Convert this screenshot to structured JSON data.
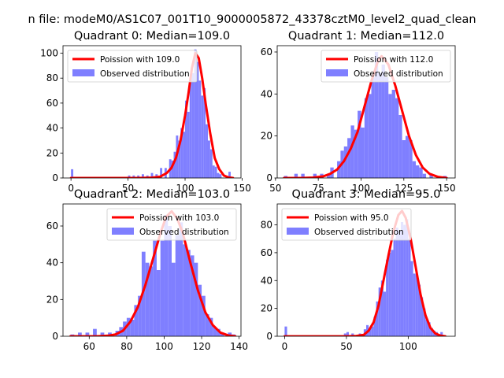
{
  "figure": {
    "suptitle": "n file: modeM0/AS1C07_001T10_9000005872_43378cztM0_level2_quad_clean"
  },
  "colors": {
    "fit_line": "#ff0000",
    "histogram": "#7f7fff",
    "axes": "#000000",
    "legend_border": "#cccccc"
  },
  "chart_data": [
    {
      "type": "bar",
      "title": "Quadrant 0: Median=109.0",
      "median": 109.0,
      "xlim": [
        -7,
        149
      ],
      "ylim": [
        0,
        106
      ],
      "xticks": [
        0,
        50,
        100,
        150
      ],
      "yticks": [
        0,
        20,
        40,
        60,
        80,
        100
      ],
      "series": [
        {
          "name": "Poission with 109.0",
          "kind": "line",
          "x": [
            0,
            58,
            70,
            78,
            84,
            88,
            92,
            96,
            100,
            103,
            106,
            109,
            112,
            115,
            118,
            122,
            126,
            130,
            134,
            138,
            142
          ],
          "y": [
            0,
            0,
            0.2,
            1,
            4,
            8,
            16,
            30,
            50,
            68,
            88,
            100,
            96,
            80,
            60,
            36,
            16,
            7,
            2,
            0.5,
            0
          ]
        },
        {
          "name": "Observed distribution",
          "kind": "histogram",
          "bins": [
            [
              0,
              2,
              7
            ],
            [
              50,
              52,
              2
            ],
            [
              54,
              56,
              2
            ],
            [
              58,
              60,
              2
            ],
            [
              62,
              64,
              3
            ],
            [
              66,
              68,
              2
            ],
            [
              70,
              72,
              4
            ],
            [
              74,
              76,
              3
            ],
            [
              78,
              80,
              8
            ],
            [
              82,
              84,
              8
            ],
            [
              86,
              88,
              15
            ],
            [
              88,
              90,
              14
            ],
            [
              90,
              92,
              21
            ],
            [
              92,
              94,
              34
            ],
            [
              94,
              96,
              30
            ],
            [
              96,
              98,
              40
            ],
            [
              98,
              100,
              37
            ],
            [
              100,
              102,
              62
            ],
            [
              102,
              104,
              53
            ],
            [
              104,
              106,
              80
            ],
            [
              106,
              108,
              84
            ],
            [
              108,
              110,
              103
            ],
            [
              110,
              112,
              93
            ],
            [
              112,
              114,
              78
            ],
            [
              114,
              116,
              66
            ],
            [
              116,
              118,
              72
            ],
            [
              118,
              120,
              43
            ],
            [
              120,
              122,
              30
            ],
            [
              122,
              124,
              23
            ],
            [
              124,
              126,
              10
            ],
            [
              126,
              128,
              9
            ],
            [
              128,
              130,
              4
            ],
            [
              130,
              132,
              3
            ],
            [
              138,
              140,
              5
            ]
          ]
        }
      ]
    },
    {
      "type": "bar",
      "title": "Quadrant 1: Median=112.0",
      "median": 112.0,
      "xlim": [
        51,
        155
      ],
      "ylim": [
        0,
        63
      ],
      "xticks": [
        50,
        75,
        100,
        125,
        150
      ],
      "yticks": [
        0,
        20,
        40,
        60
      ],
      "series": [
        {
          "name": "Poission with 112.0",
          "kind": "line",
          "x": [
            55,
            65,
            72,
            78,
            82,
            86,
            90,
            94,
            98,
            102,
            106,
            110,
            112,
            116,
            120,
            124,
            128,
            132,
            136,
            140,
            145,
            150
          ],
          "y": [
            0,
            0,
            0.2,
            0.8,
            2,
            4,
            8,
            14,
            22,
            34,
            46,
            56,
            58,
            54,
            44,
            32,
            20,
            11,
            5,
            2,
            0.5,
            0
          ]
        },
        {
          "name": "Observed distribution",
          "kind": "histogram",
          "bins": [
            [
              55,
              57,
              1
            ],
            [
              61,
              63,
              2
            ],
            [
              65,
              67,
              2
            ],
            [
              72,
              74,
              2
            ],
            [
              76,
              78,
              2
            ],
            [
              80,
              82,
              2
            ],
            [
              82,
              84,
              5
            ],
            [
              86,
              88,
              8
            ],
            [
              88,
              90,
              13
            ],
            [
              90,
              92,
              15
            ],
            [
              92,
              94,
              19
            ],
            [
              94,
              96,
              25
            ],
            [
              96,
              98,
              23
            ],
            [
              98,
              100,
              32
            ],
            [
              100,
              102,
              24
            ],
            [
              102,
              104,
              38
            ],
            [
              104,
              106,
              40
            ],
            [
              106,
              108,
              48
            ],
            [
              108,
              110,
              60
            ],
            [
              110,
              112,
              50
            ],
            [
              112,
              114,
              54
            ],
            [
              114,
              116,
              48
            ],
            [
              116,
              118,
              40
            ],
            [
              118,
              120,
              42
            ],
            [
              120,
              122,
              38
            ],
            [
              122,
              124,
              30
            ],
            [
              124,
              126,
              18
            ],
            [
              126,
              128,
              20
            ],
            [
              128,
              130,
              18
            ],
            [
              130,
              132,
              8
            ],
            [
              132,
              134,
              6
            ],
            [
              134,
              136,
              5
            ],
            [
              136,
              138,
              2
            ],
            [
              140,
              142,
              2
            ],
            [
              148,
              150,
              1
            ]
          ]
        }
      ]
    },
    {
      "type": "bar",
      "title": "Quadrant 2: Median=103.0",
      "median": 103.0,
      "xlim": [
        46,
        141
      ],
      "ylim": [
        0,
        72
      ],
      "xticks": [
        60,
        80,
        100,
        120,
        140
      ],
      "yticks": [
        0,
        20,
        40,
        60
      ],
      "series": [
        {
          "name": "Poission with 103.0",
          "kind": "line",
          "x": [
            50,
            64,
            70,
            74,
            78,
            82,
            86,
            90,
            94,
            98,
            101,
            104,
            107,
            110,
            114,
            118,
            122,
            126,
            130,
            134,
            138
          ],
          "y": [
            0,
            0,
            0.3,
            1,
            3,
            8,
            16,
            28,
            42,
            56,
            65,
            68,
            64,
            56,
            40,
            25,
            13,
            6,
            2,
            0.5,
            0
          ]
        },
        {
          "name": "Observed distribution",
          "kind": "histogram",
          "bins": [
            [
              50,
              52,
              1
            ],
            [
              54,
              56,
              2
            ],
            [
              58,
              60,
              2
            ],
            [
              62,
              64,
              4
            ],
            [
              66,
              68,
              2
            ],
            [
              70,
              72,
              2
            ],
            [
              74,
              76,
              3
            ],
            [
              76,
              78,
              5
            ],
            [
              78,
              80,
              8
            ],
            [
              80,
              82,
              10
            ],
            [
              82,
              84,
              9
            ],
            [
              84,
              86,
              17
            ],
            [
              86,
              88,
              22
            ],
            [
              88,
              90,
              46
            ],
            [
              90,
              92,
              40
            ],
            [
              92,
              94,
              38
            ],
            [
              94,
              96,
              52
            ],
            [
              96,
              98,
              36
            ],
            [
              98,
              100,
              52
            ],
            [
              100,
              102,
              66
            ],
            [
              102,
              104,
              60
            ],
            [
              104,
              106,
              40
            ],
            [
              106,
              108,
              55
            ],
            [
              108,
              110,
              62
            ],
            [
              110,
              112,
              50
            ],
            [
              112,
              114,
              47
            ],
            [
              114,
              116,
              44
            ],
            [
              116,
              118,
              40
            ],
            [
              118,
              120,
              28
            ],
            [
              120,
              122,
              22
            ],
            [
              122,
              124,
              12
            ],
            [
              124,
              126,
              10
            ],
            [
              126,
              128,
              5
            ],
            [
              128,
              130,
              4
            ],
            [
              130,
              132,
              2
            ],
            [
              134,
              136,
              2
            ],
            [
              136,
              138,
              1
            ]
          ]
        }
      ]
    },
    {
      "type": "bar",
      "title": "Quadrant 3: Median=95.0",
      "median": 95.0,
      "xlim": [
        -6,
        138
      ],
      "ylim": [
        0,
        95
      ],
      "xticks": [
        0,
        50,
        100
      ],
      "yticks": [
        0,
        20,
        40,
        60,
        80
      ],
      "series": [
        {
          "name": "Poission with 95.0",
          "kind": "line",
          "x": [
            0,
            50,
            58,
            64,
            68,
            72,
            76,
            80,
            84,
            88,
            92,
            95,
            98,
            102,
            106,
            110,
            114,
            118,
            122,
            126,
            130
          ],
          "y": [
            0,
            0,
            0.2,
            1,
            4,
            10,
            22,
            40,
            58,
            75,
            87,
            90,
            85,
            70,
            50,
            30,
            15,
            6,
            2,
            0.5,
            0
          ]
        },
        {
          "name": "Observed distribution",
          "kind": "histogram",
          "bins": [
            [
              0,
              2,
              7
            ],
            [
              48,
              50,
              2
            ],
            [
              50,
              52,
              3
            ],
            [
              54,
              56,
              2
            ],
            [
              60,
              62,
              2
            ],
            [
              64,
              66,
              5
            ],
            [
              66,
              68,
              8
            ],
            [
              68,
              70,
              6
            ],
            [
              70,
              72,
              7
            ],
            [
              72,
              74,
              14
            ],
            [
              74,
              76,
              25
            ],
            [
              76,
              78,
              35
            ],
            [
              78,
              80,
              40
            ],
            [
              80,
              82,
              32
            ],
            [
              82,
              84,
              55
            ],
            [
              84,
              86,
              60
            ],
            [
              86,
              88,
              62
            ],
            [
              88,
              90,
              70
            ],
            [
              90,
              92,
              78
            ],
            [
              92,
              94,
              76
            ],
            [
              94,
              96,
              82
            ],
            [
              96,
              98,
              80
            ],
            [
              98,
              100,
              84
            ],
            [
              100,
              102,
              70
            ],
            [
              102,
              104,
              54
            ],
            [
              104,
              106,
              45
            ],
            [
              106,
              108,
              44
            ],
            [
              108,
              110,
              37
            ],
            [
              110,
              112,
              28
            ],
            [
              112,
              114,
              20
            ],
            [
              114,
              116,
              12
            ],
            [
              116,
              118,
              10
            ],
            [
              118,
              120,
              6
            ],
            [
              120,
              122,
              4
            ],
            [
              122,
              124,
              3
            ],
            [
              126,
              128,
              3
            ]
          ]
        }
      ]
    }
  ]
}
